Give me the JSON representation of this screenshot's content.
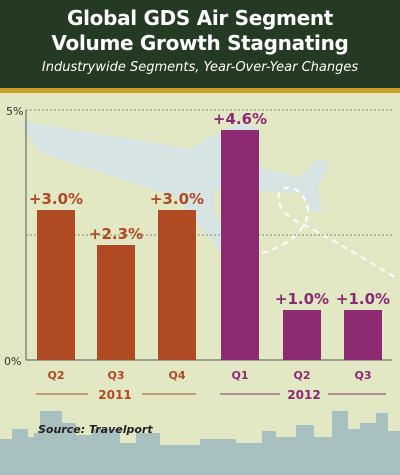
{
  "header": {
    "title_line1": "Global GDS Air Segment",
    "title_line2": "Volume Growth Stagnating",
    "subtitle": "Industrywide Segments, Year-Over-Year Changes"
  },
  "source": "Source: Travelport",
  "colors": {
    "bar_2011": "#b04a22",
    "bar_2012": "#8c2a72",
    "label_2011": "#b04a22",
    "label_2012": "#8c2a72",
    "header_bg": "#243a22",
    "accent_line": "#c9a227",
    "background": "#e2e8c4",
    "plane": "#d6e4e4",
    "skyline": "#a8c0c0"
  },
  "chart_data": {
    "type": "bar",
    "title": "Global GDS Air Segment Volume Growth Stagnating",
    "subtitle": "Industrywide Segments, Year-Over-Year Changes",
    "categories": [
      "Q2",
      "Q3",
      "Q4",
      "Q1",
      "Q2",
      "Q3"
    ],
    "groups": [
      {
        "name": "2011",
        "categories": [
          "Q2",
          "Q3",
          "Q4"
        ]
      },
      {
        "name": "2012",
        "categories": [
          "Q1",
          "Q2",
          "Q3"
        ]
      }
    ],
    "values": [
      3.0,
      2.3,
      3.0,
      4.6,
      1.0,
      1.0
    ],
    "value_labels": [
      "+3.0%",
      "+2.3%",
      "+3.0%",
      "+4.6%",
      "+1.0%",
      "+1.0%"
    ],
    "y_tick_labels": [
      "5%",
      "0%"
    ],
    "ylim": [
      0,
      5
    ],
    "grid": true,
    "xlabel": "",
    "ylabel": ""
  }
}
